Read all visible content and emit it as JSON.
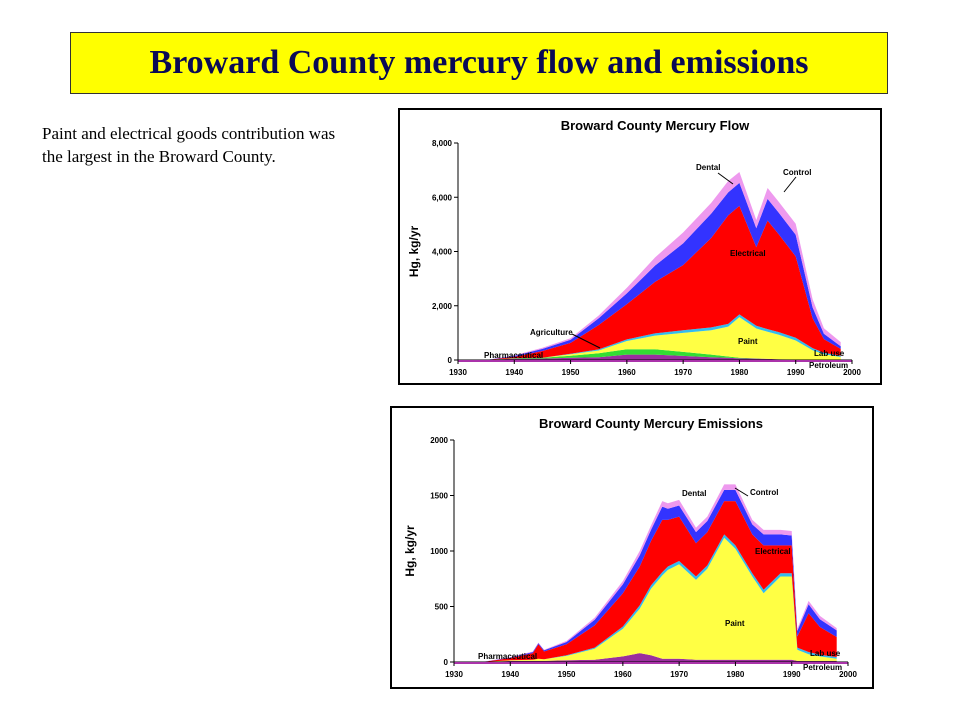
{
  "slide": {
    "title": "Broward County mercury flow and emissions",
    "body": "Paint and electrical goods contribution was the largest in the Broward County."
  },
  "colors": {
    "title_bg": "#ffff00",
    "title_text": "#0a0a55",
    "Pharmaceutical": "#9a2f9e",
    "Agriculture": "#33dd33",
    "Paint": "#ffff44",
    "Lab use": "#33bbee",
    "Electrical": "#ff0000",
    "Dental": "#3333ff",
    "Control": "#ee99ee"
  },
  "chart_data": [
    {
      "type": "area",
      "title": "Broward County Mercury Flow",
      "xlabel": "",
      "ylabel": "Hg, kg/yr",
      "xlim": [
        1930,
        2000
      ],
      "ylim": [
        0,
        8000
      ],
      "xticks": [
        "1930",
        "1940",
        "1950",
        "1960",
        "1970",
        "1980",
        "1990",
        "2000"
      ],
      "yticks": [
        "0",
        "2,000",
        "4,000",
        "6,000",
        "8,000"
      ],
      "grid": false,
      "stacked": true,
      "x": [
        1930,
        1935,
        1940,
        1945,
        1950,
        1955,
        1960,
        1965,
        1970,
        1975,
        1978,
        1980,
        1983,
        1985,
        1987,
        1990,
        1993,
        1995,
        1998
      ],
      "series": [
        {
          "name": "Pharmaceutical",
          "values": [
            0,
            0,
            50,
            50,
            80,
            100,
            200,
            200,
            150,
            100,
            80,
            60,
            50,
            40,
            30,
            20,
            10,
            10,
            10
          ]
        },
        {
          "name": "Agriculture",
          "values": [
            0,
            0,
            20,
            30,
            80,
            150,
            200,
            200,
            150,
            100,
            50,
            20,
            10,
            0,
            0,
            0,
            0,
            0,
            0
          ]
        },
        {
          "name": "Paint",
          "values": [
            0,
            0,
            0,
            0,
            50,
            100,
            300,
            500,
            700,
            900,
            1100,
            1500,
            1100,
            1000,
            900,
            700,
            350,
            200,
            100
          ]
        },
        {
          "name": "Lab use",
          "values": [
            0,
            0,
            0,
            0,
            20,
            40,
            60,
            80,
            100,
            100,
            100,
            100,
            100,
            100,
            100,
            100,
            80,
            60,
            50
          ]
        },
        {
          "name": "Electrical",
          "values": [
            0,
            0,
            50,
            250,
            400,
            900,
            1300,
            1900,
            2400,
            3300,
            4000,
            4000,
            2900,
            4000,
            3600,
            3000,
            1100,
            500,
            250
          ]
        },
        {
          "name": "Dental",
          "values": [
            0,
            0,
            30,
            80,
            120,
            250,
            400,
            600,
            800,
            900,
            850,
            850,
            700,
            800,
            800,
            800,
            400,
            200,
            100
          ]
        },
        {
          "name": "Control",
          "values": [
            0,
            0,
            20,
            40,
            50,
            100,
            200,
            300,
            400,
            400,
            420,
            400,
            300,
            400,
            400,
            400,
            300,
            200,
            150
          ]
        }
      ],
      "annotations": [
        "Dental",
        "Control",
        "Electrical",
        "Agriculture",
        "Paint",
        "Pharmaceutical",
        "Lab use",
        "Petroleum"
      ]
    },
    {
      "type": "area",
      "title": "Broward County Mercury Emissions",
      "xlabel": "",
      "ylabel": "Hg, kg/yr",
      "xlim": [
        1930,
        2000
      ],
      "ylim": [
        0,
        2000
      ],
      "xticks": [
        "1930",
        "1940",
        "1950",
        "1960",
        "1970",
        "1980",
        "1990",
        "2000"
      ],
      "yticks": [
        "0",
        "500",
        "1000",
        "1500",
        "2000"
      ],
      "grid": false,
      "stacked": true,
      "x": [
        1930,
        1935,
        1940,
        1944,
        1945,
        1946,
        1950,
        1955,
        1960,
        1963,
        1965,
        1967,
        1968,
        1970,
        1973,
        1975,
        1978,
        1980,
        1983,
        1985,
        1988,
        1990,
        1991,
        1993,
        1995,
        1998
      ],
      "series": [
        {
          "name": "Pharmaceutical",
          "values": [
            0,
            0,
            10,
            10,
            10,
            10,
            15,
            20,
            50,
            80,
            60,
            30,
            30,
            30,
            20,
            20,
            20,
            20,
            20,
            20,
            20,
            20,
            10,
            10,
            10,
            10
          ]
        },
        {
          "name": "Paint",
          "values": [
            0,
            0,
            5,
            10,
            20,
            15,
            40,
            100,
            250,
            400,
            600,
            750,
            800,
            850,
            720,
            820,
            1100,
            1000,
            750,
            600,
            750,
            750,
            100,
            60,
            40,
            20
          ]
        },
        {
          "name": "Lab use",
          "values": [
            0,
            0,
            0,
            0,
            0,
            0,
            5,
            10,
            20,
            30,
            30,
            30,
            30,
            30,
            30,
            30,
            30,
            30,
            30,
            30,
            30,
            30,
            20,
            20,
            15,
            15
          ]
        },
        {
          "name": "Electrical",
          "values": [
            0,
            0,
            20,
            60,
            130,
            70,
            100,
            200,
            300,
            350,
            400,
            470,
            420,
            400,
            300,
            300,
            300,
            400,
            350,
            400,
            250,
            250,
            100,
            350,
            250,
            180
          ]
        },
        {
          "name": "Dental",
          "values": [
            0,
            0,
            5,
            10,
            10,
            10,
            20,
            50,
            80,
            100,
            100,
            120,
            100,
            100,
            100,
            100,
            100,
            100,
            90,
            100,
            100,
            90,
            50,
            80,
            70,
            60
          ]
        },
        {
          "name": "Control",
          "values": [
            0,
            0,
            5,
            5,
            5,
            5,
            10,
            20,
            30,
            40,
            40,
            50,
            50,
            50,
            40,
            40,
            50,
            50,
            40,
            40,
            40,
            40,
            20,
            30,
            30,
            20
          ]
        }
      ],
      "annotations": [
        "Dental",
        "Control",
        "Electrical",
        "Paint",
        "Pharmaceutical",
        "Lab use",
        "Petroleum"
      ]
    }
  ]
}
